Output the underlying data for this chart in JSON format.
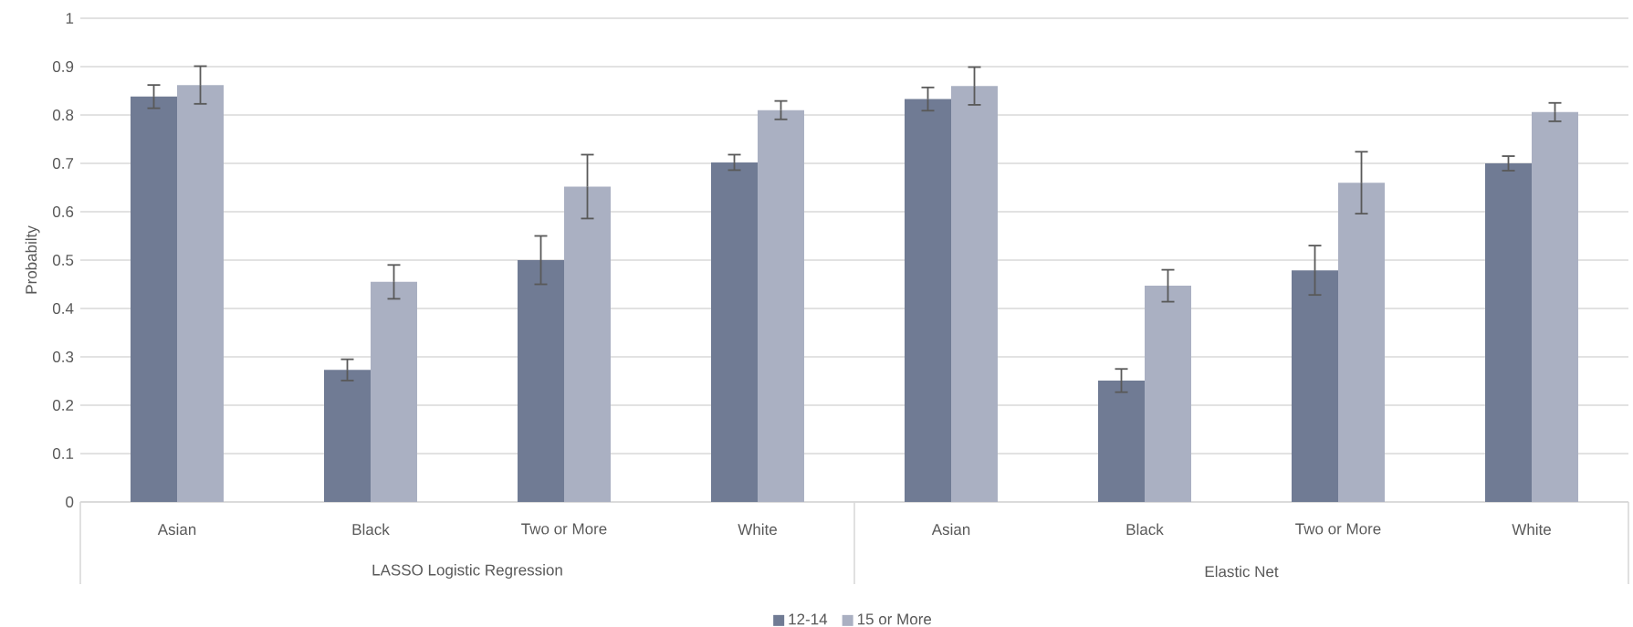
{
  "chart_data": {
    "type": "bar",
    "ylabel": "Probabilty",
    "categories": [
      "Asian",
      "Black",
      "Two or More",
      "White",
      "Asian",
      "Black",
      "Two or More",
      "White"
    ],
    "series": [
      {
        "name": "12-14",
        "color": "#707b94",
        "values": [
          0.838,
          0.273,
          0.5,
          0.702,
          0.833,
          0.251,
          0.479,
          0.7
        ],
        "errors": [
          0.024,
          0.022,
          0.05,
          0.016,
          0.024,
          0.024,
          0.051,
          0.015
        ]
      },
      {
        "name": "15 or More",
        "color": "#aab0c2",
        "values": [
          0.862,
          0.455,
          0.652,
          0.81,
          0.86,
          0.447,
          0.66,
          0.806
        ],
        "errors": [
          0.039,
          0.035,
          0.066,
          0.019,
          0.039,
          0.033,
          0.064,
          0.019
        ]
      }
    ],
    "ylim": [
      0,
      1
    ],
    "yticks": [
      0,
      0.1,
      0.2,
      0.3,
      0.4,
      0.5,
      0.6,
      0.7,
      0.8,
      0.9,
      1
    ],
    "grid": "y",
    "legend": "bottom",
    "annotations": [
      "LASSO Logistic Regression",
      "Elastic Net"
    ]
  }
}
